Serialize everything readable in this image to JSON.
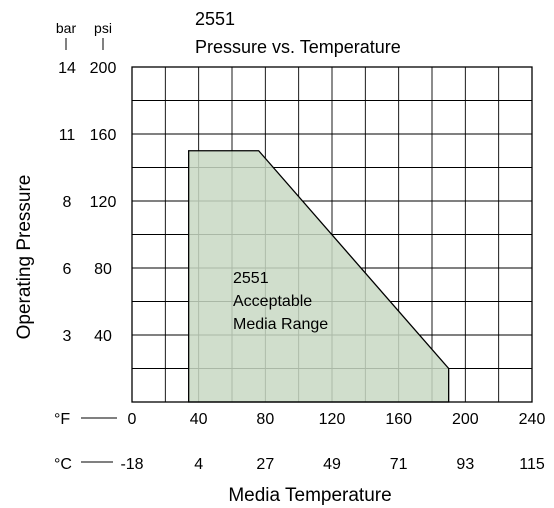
{
  "chart_data": {
    "type": "area",
    "title_lines": [
      "2551",
      "Pressure vs. Temperature"
    ],
    "xlabel": "Media Temperature",
    "ylabel": "Operating Pressure",
    "x_unit_primary": "°F",
    "x_unit_secondary": "°C",
    "y_unit_primary": "psi",
    "y_unit_secondary": "bar",
    "xlim": [
      0,
      240
    ],
    "ylim": [
      0,
      200
    ],
    "x_ticks_f": [
      "0",
      "40",
      "80",
      "120",
      "160",
      "200",
      "240"
    ],
    "x_ticks_c": [
      "-18",
      "4",
      "27",
      "49",
      "71",
      "93",
      "115"
    ],
    "y_ticks_psi": [
      "200",
      "160",
      "120",
      "80",
      "40"
    ],
    "y_ticks_bar": [
      "14",
      "11",
      "8",
      "6",
      "3"
    ],
    "grid": true,
    "region": {
      "label_lines": [
        "2551",
        "Acceptable",
        "Media Range"
      ],
      "fill_color": "#c8d8c3",
      "points": [
        {
          "x": 34,
          "y": 0
        },
        {
          "x": 34,
          "y": 150
        },
        {
          "x": 76,
          "y": 150
        },
        {
          "x": 190,
          "y": 20
        },
        {
          "x": 190,
          "y": 0
        }
      ]
    }
  }
}
